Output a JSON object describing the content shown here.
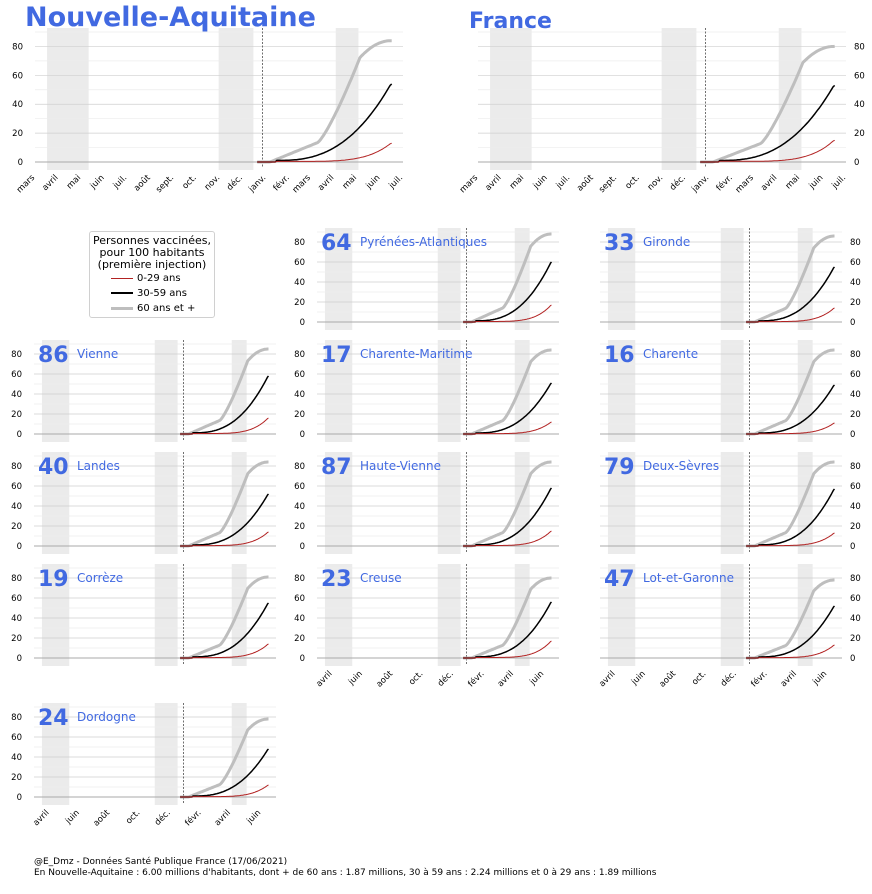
{
  "header": {
    "region_title": "Nouvelle-Aquitaine",
    "country_title": "France"
  },
  "legend": {
    "title": "Personnes vaccinées,\npour 100 habitants\n(première injection)",
    "entries": [
      {
        "label": "0-29 ans",
        "color": "#b22222"
      },
      {
        "label": "30-59 ans",
        "color": "#000000"
      },
      {
        "label": "60 ans et +",
        "color": "#bebebe"
      }
    ]
  },
  "footer": {
    "line1": "@E_Dmz - Données Santé Publique France (17/06/2021)",
    "line2": "En Nouvelle-Aquitaine : 6.00 millions d'habitants, dont + de 60 ans : 1.87 millions, 30 à 59 ans : 2.24 millions et 0 à 29 ans : 1.89 millions"
  },
  "colors": {
    "title": "#4169e1",
    "young": "#b22222",
    "middle": "#000000",
    "old": "#bebebe",
    "shade": "#ebebeb",
    "grid": "#dcdcdc"
  },
  "chart_data": {
    "type": "line",
    "x_ticks_long": [
      "mars",
      "avril",
      "mai",
      "juin",
      "juil.",
      "août",
      "sept.",
      "oct.",
      "nov.",
      "déc.",
      "janv.",
      "févr.",
      "mars",
      "avril",
      "mai",
      "juin",
      "juil."
    ],
    "x_ticks_short": [
      "avril",
      "juin",
      "août",
      "oct.",
      "déc.",
      "févr.",
      "avril",
      "juin"
    ],
    "x_range": [
      "2020-03-01",
      "2021-07-01"
    ],
    "ylim": [
      0,
      90
    ],
    "yticks": [
      0,
      20,
      40,
      60,
      80
    ],
    "shaded_periods": [
      [
        "2020-03-17",
        "2020-05-11"
      ],
      [
        "2020-10-30",
        "2020-12-15"
      ],
      [
        "2021-04-03",
        "2021-05-03"
      ]
    ],
    "vertical_marker": "2020-12-27",
    "series_names": [
      "0-29 ans",
      "30-59 ans",
      "60 ans et +"
    ],
    "panels": [
      {
        "code": "",
        "name": "Nouvelle-Aquitaine",
        "final": [
          13,
          54,
          84
        ]
      },
      {
        "code": "",
        "name": "France",
        "final": [
          15,
          53,
          80
        ]
      },
      {
        "code": "64",
        "name": "Pyrénées-Atlantiques",
        "final": [
          17,
          60,
          88
        ]
      },
      {
        "code": "33",
        "name": "Gironde",
        "final": [
          14,
          55,
          86
        ]
      },
      {
        "code": "86",
        "name": "Vienne",
        "final": [
          16,
          58,
          85
        ]
      },
      {
        "code": "17",
        "name": "Charente-Maritime",
        "final": [
          12,
          51,
          84
        ]
      },
      {
        "code": "16",
        "name": "Charente",
        "final": [
          11,
          49,
          84
        ]
      },
      {
        "code": "40",
        "name": "Landes",
        "final": [
          14,
          52,
          84
        ]
      },
      {
        "code": "87",
        "name": "Haute-Vienne",
        "final": [
          15,
          58,
          84
        ]
      },
      {
        "code": "79",
        "name": "Deux-Sèvres",
        "final": [
          13,
          57,
          84
        ]
      },
      {
        "code": "19",
        "name": "Corrèze",
        "final": [
          14,
          55,
          81
        ]
      },
      {
        "code": "23",
        "name": "Creuse",
        "final": [
          17,
          56,
          80
        ]
      },
      {
        "code": "47",
        "name": "Lot-et-Garonne",
        "final": [
          13,
          52,
          78
        ]
      },
      {
        "code": "24",
        "name": "Dordogne",
        "final": [
          12,
          48,
          78
        ]
      }
    ]
  }
}
